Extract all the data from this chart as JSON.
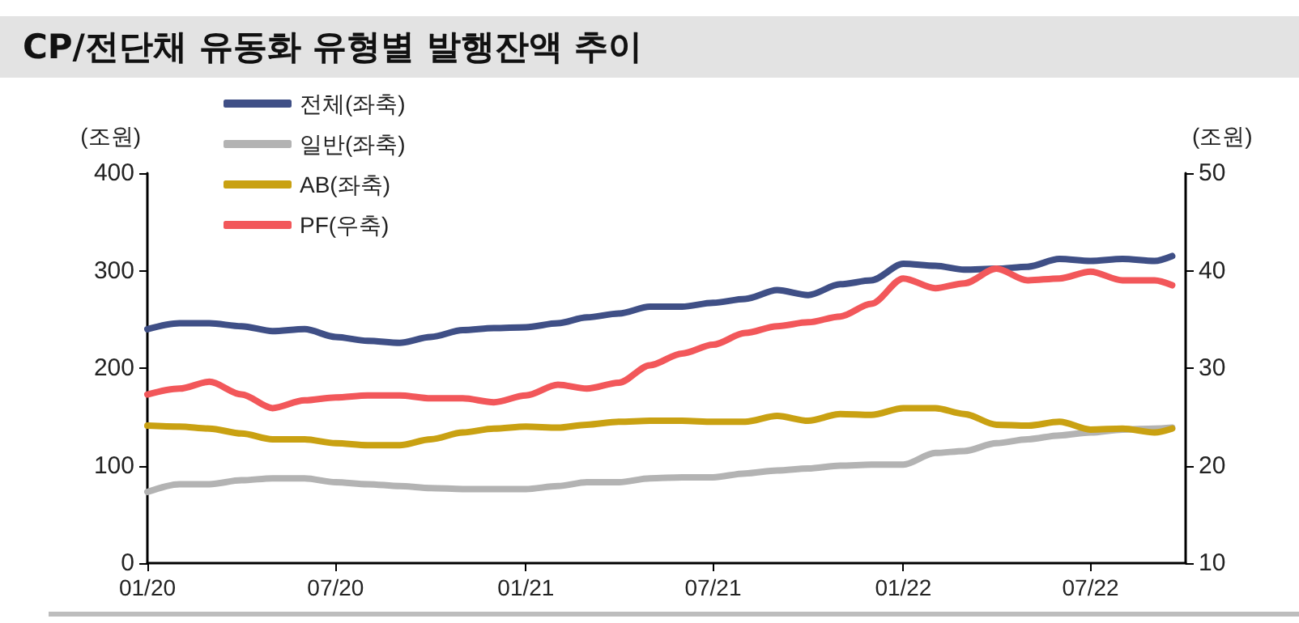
{
  "chart_data": {
    "type": "line",
    "title": "CP/전단채 유동화 유형별 발행잔액 추이",
    "ylabel": "(조원)",
    "y2label": "(조원)",
    "x": [
      "2020-01-01",
      "2020-02-01",
      "2020-03-01",
      "2020-04-01",
      "2020-05-01",
      "2020-06-01",
      "2020-07-01",
      "2020-08-01",
      "2020-09-01",
      "2020-10-01",
      "2020-11-01",
      "2020-12-01",
      "2021-01-01",
      "2021-02-01",
      "2021-03-01",
      "2021-04-01",
      "2021-05-01",
      "2021-06-01",
      "2021-07-01",
      "2021-08-01",
      "2021-09-01",
      "2021-10-01",
      "2021-11-01",
      "2021-12-01",
      "2022-01-01",
      "2022-02-01",
      "2022-03-01",
      "2022-04-01",
      "2022-05-01",
      "2022-06-01",
      "2022-07-01",
      "2022-08-01",
      "2022-09-01",
      "2022-09-18"
    ],
    "series": [
      {
        "name": "전체(좌축)",
        "color": "#3f4f86",
        "values": [
          240,
          246,
          246,
          243,
          238,
          240,
          232,
          228,
          226,
          232,
          239,
          241,
          242,
          246,
          252,
          256,
          263,
          263,
          267,
          271,
          280,
          275,
          286,
          290,
          307,
          305,
          301,
          302,
          304,
          312,
          310,
          312,
          310,
          315
        ]
      },
      {
        "name": "일반(좌축)",
        "color": "#b3b3b3",
        "values": [
          73,
          81,
          81,
          85,
          87,
          87,
          83,
          81,
          79,
          77,
          76,
          76,
          76,
          79,
          83,
          83,
          87,
          88,
          88,
          92,
          95,
          97,
          100,
          101,
          101,
          113,
          115,
          123,
          127,
          131,
          134,
          137,
          138,
          139
        ]
      },
      {
        "name": "AB(좌축)",
        "color": "#c9a112",
        "values": [
          141,
          140,
          138,
          133,
          127,
          127,
          123,
          121,
          121,
          127,
          134,
          138,
          140,
          139,
          142,
          145,
          146,
          146,
          145,
          145,
          151,
          146,
          153,
          152,
          159,
          159,
          153,
          142,
          141,
          145,
          137,
          138,
          134,
          138
        ]
      },
      {
        "name": "PF(우축)",
        "color": "#f2575a",
        "axis": "y2",
        "values": [
          27.3,
          27.9,
          28.6,
          27.3,
          25.9,
          26.7,
          27,
          27.2,
          27.2,
          26.9,
          26.9,
          26.5,
          27.2,
          28.3,
          27.9,
          28.5,
          30.3,
          31.5,
          32.4,
          33.6,
          34.3,
          34.7,
          35.3,
          36.6,
          39.2,
          38.2,
          38.7,
          40.2,
          39,
          39.2,
          39.9,
          39,
          39,
          38.5
        ]
      }
    ],
    "xlim": [
      "2020-01-01",
      "2022-10-01"
    ],
    "xticks": [
      {
        "value": "2020-01-01",
        "label": "01/20"
      },
      {
        "value": "2020-07-01",
        "label": "07/20"
      },
      {
        "value": "2021-01-01",
        "label": "01/21"
      },
      {
        "value": "2021-07-01",
        "label": "07/21"
      },
      {
        "value": "2022-01-01",
        "label": "01/22"
      },
      {
        "value": "2022-07-01",
        "label": "07/22"
      }
    ],
    "ylim": [
      0,
      400
    ],
    "yticks": [
      0,
      100,
      200,
      300,
      400
    ],
    "y2lim": [
      10,
      50
    ],
    "y2ticks": [
      10,
      20,
      30,
      40,
      50
    ],
    "grid": false,
    "legend": "top left",
    "marker": "none",
    "line_style": "solid"
  }
}
